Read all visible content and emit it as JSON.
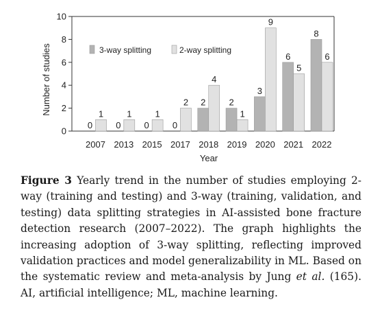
{
  "chart_data": {
    "type": "bar",
    "categories": [
      "2007",
      "2013",
      "2015",
      "2017",
      "2018",
      "2019",
      "2020",
      "2021",
      "2022"
    ],
    "series": [
      {
        "name": "3-way splitting",
        "values": [
          0,
          0,
          0,
          0,
          2,
          2,
          3,
          6,
          8
        ],
        "color": "#b3b3b3"
      },
      {
        "name": "2-way splitting",
        "values": [
          1,
          1,
          1,
          2,
          4,
          1,
          9,
          5,
          6
        ],
        "color": "#e1e1e1"
      }
    ],
    "xlabel": "Year",
    "ylabel": "Number of studies",
    "ylim": [
      0,
      10
    ],
    "yticks": [
      0,
      2,
      4,
      6,
      8,
      10
    ],
    "legend": "top-left",
    "grid": false
  },
  "caption": {
    "label": "Figure 3",
    "text_1": " Yearly trend in the number of studies employing 2-way (training and testing) and 3-way (training, validation, and testing) data splitting strategies in AI-assisted bone fracture detection research (2007–2022). The graph highlights the increasing adoption of 3-way splitting, reflecting improved validation practices and model generalizability in ML. Based on the systematic review and meta-analysis by Jung ",
    "et_al": "et al.",
    "text_2": " (165). AI, artificial intelligence; ML, machine learning."
  }
}
